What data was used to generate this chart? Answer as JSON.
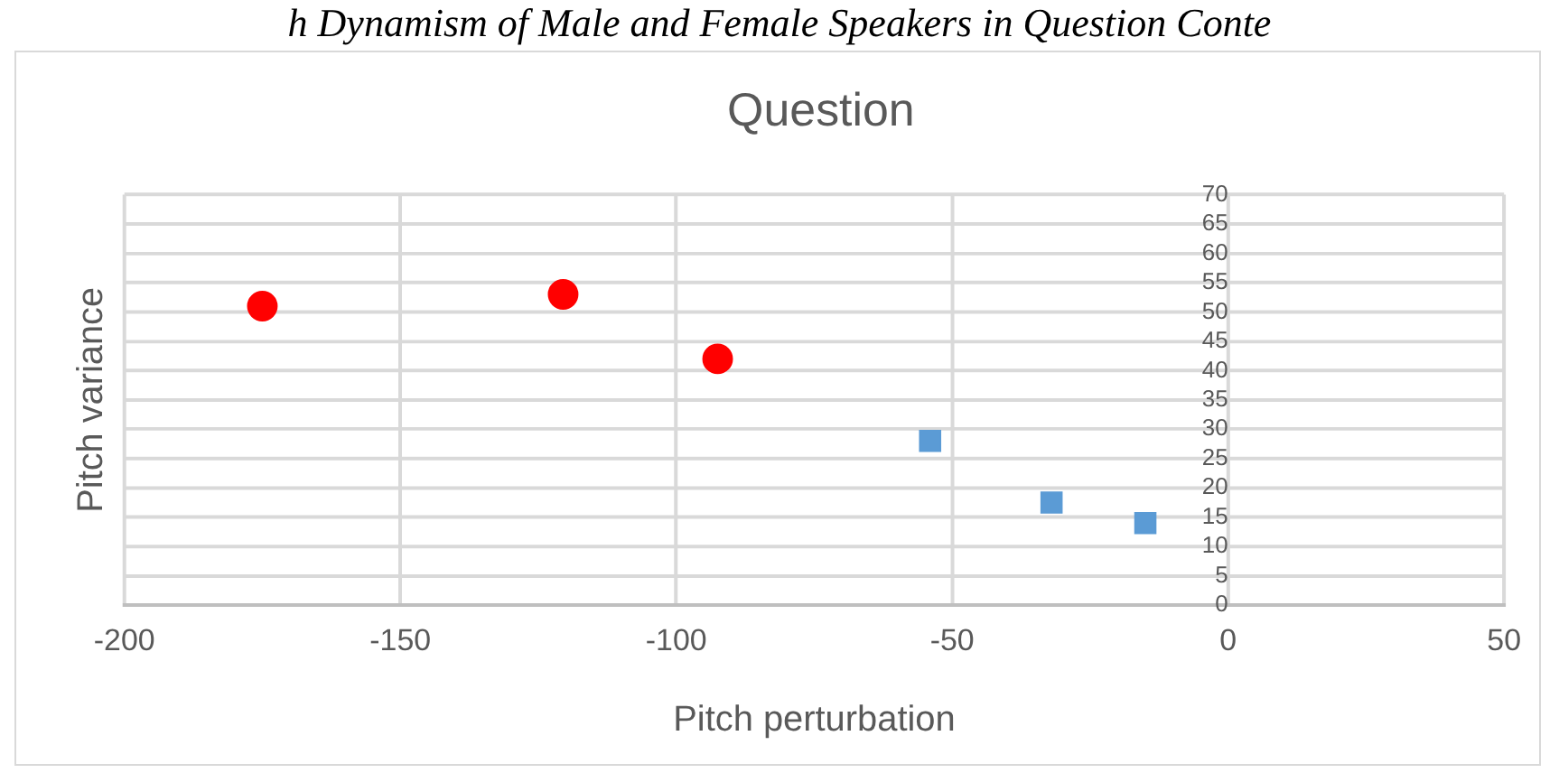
{
  "chart_data": {
    "type": "scatter",
    "title": "Question",
    "xlabel": "Pitch perturbation",
    "ylabel": "Pitch variance",
    "annotations": [
      "h Dynamism of Male and Female Speakers in Question Conte"
    ],
    "series": [
      {
        "color": "#ff0000",
        "marker": "circle",
        "x": [
          -175,
          -120.5,
          -92.5
        ],
        "values": [
          51,
          53,
          42
        ]
      },
      {
        "color": "#5b9bd5",
        "marker": "square",
        "x": [
          -54,
          -32,
          -15
        ],
        "values": [
          28,
          17.5,
          14
        ]
      }
    ],
    "xlim": [
      -200,
      50
    ],
    "xticks": [
      -200,
      -150,
      -100,
      -50,
      0,
      50
    ],
    "ylim": [
      0,
      70
    ],
    "yticks": [
      0,
      5,
      10,
      15,
      20,
      25,
      30,
      35,
      40,
      45,
      50,
      55,
      60,
      65,
      70
    ],
    "grid": true,
    "legend": false
  }
}
